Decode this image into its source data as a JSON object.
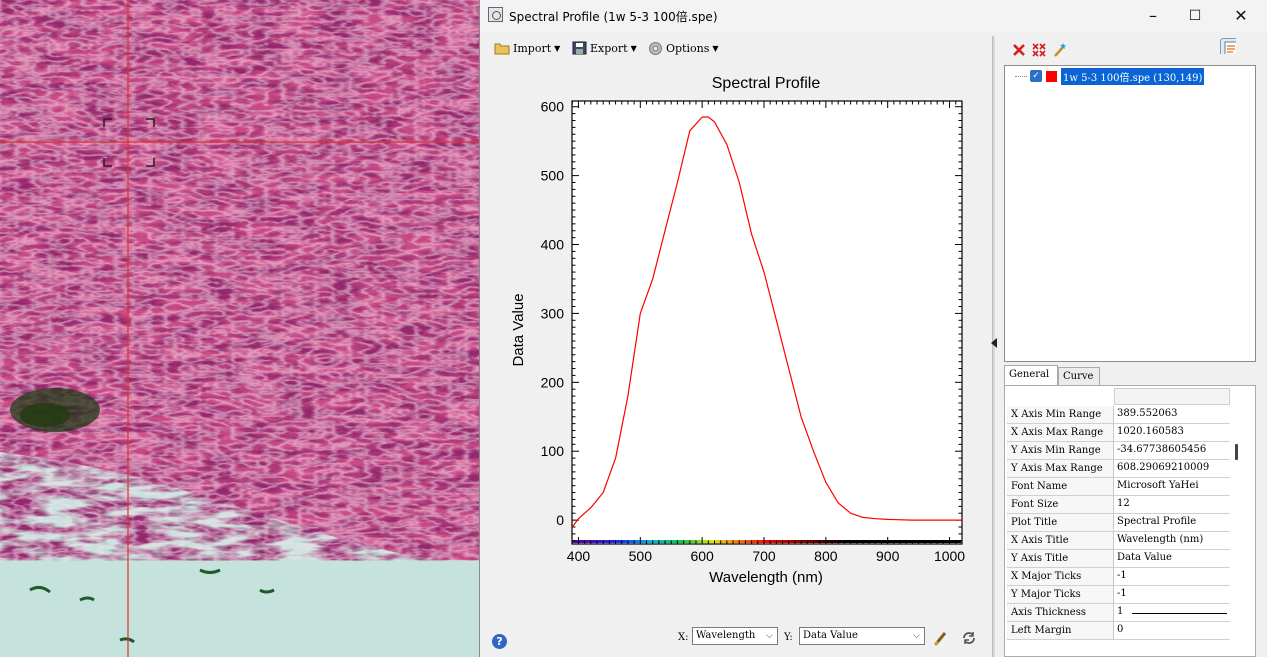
{
  "window": {
    "title": "Spectral Profile (1w 5-3 100倍.spe)",
    "minimize": "–",
    "maximize": "☐",
    "close": "✕"
  },
  "toolbar": {
    "import_label": "Import",
    "export_label": "Export",
    "options_label": "Options"
  },
  "chart_data": {
    "type": "line",
    "title": "Spectral Profile",
    "xlabel": "Wavelength (nm)",
    "ylabel": "Data Value",
    "xlim": [
      389.552063,
      1020.160583
    ],
    "ylim": [
      -34.67738605456,
      608.29069210009
    ],
    "xticks": [
      400,
      500,
      600,
      700,
      800,
      900,
      1000
    ],
    "yticks": [
      0,
      100,
      200,
      300,
      400,
      500,
      600
    ],
    "grid": false,
    "series": [
      {
        "name": "1w 5-3 100倍.spe (130,149)",
        "color": "#ff0000",
        "x": [
          390,
          400,
          420,
          440,
          460,
          480,
          500,
          520,
          540,
          560,
          580,
          600,
          610,
          620,
          640,
          660,
          680,
          700,
          720,
          740,
          760,
          780,
          800,
          820,
          840,
          860,
          880,
          900,
          940,
          980,
          1020
        ],
        "y": [
          -10,
          2,
          18,
          40,
          90,
          180,
          300,
          350,
          420,
          490,
          565,
          585,
          585,
          578,
          545,
          490,
          415,
          360,
          290,
          220,
          150,
          100,
          55,
          25,
          10,
          4,
          2,
          1,
          0,
          0,
          0
        ]
      }
    ]
  },
  "bottom": {
    "x_caption": "X:",
    "x_value": "Wavelength",
    "y_caption": "Y:",
    "y_value": "Data Value",
    "help": "?"
  },
  "tree": {
    "item_label": "1w 5-3 100倍.spe (130,149)"
  },
  "tabs": [
    {
      "label": "General"
    },
    {
      "label": "Curve"
    }
  ],
  "properties": [
    {
      "name": "X Axis Min Range",
      "value": "389.552063"
    },
    {
      "name": "X Axis Max Range",
      "value": "1020.160583"
    },
    {
      "name": "Y Axis Min Range",
      "value": "-34.67738605456"
    },
    {
      "name": "Y Axis Max Range",
      "value": "608.29069210009"
    },
    {
      "name": "Font Name",
      "value": "Microsoft YaHei"
    },
    {
      "name": "Font Size",
      "value": "12"
    },
    {
      "name": "Plot Title",
      "value": "Spectral Profile"
    },
    {
      "name": "X Axis Title",
      "value": "Wavelength (nm)"
    },
    {
      "name": "Y Axis Title",
      "value": "Data Value"
    },
    {
      "name": "X Major Ticks",
      "value": "-1"
    },
    {
      "name": "Y Major Ticks",
      "value": "-1"
    },
    {
      "name": "Axis Thickness",
      "value": "1"
    },
    {
      "name": "Left Margin",
      "value": "0"
    }
  ]
}
